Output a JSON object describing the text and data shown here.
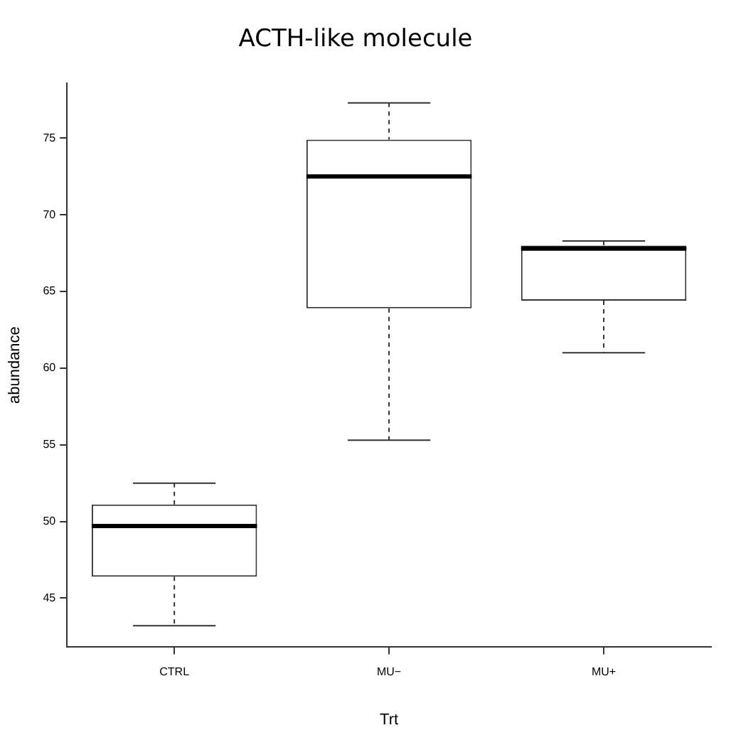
{
  "chart_data": {
    "type": "box",
    "title": "ACTH-like molecule",
    "xlabel": "Trt",
    "ylabel": "abundance",
    "categories": [
      "CTRL",
      "MU−",
      "MU+"
    ],
    "boxes": [
      {
        "low": 43.2,
        "q1": 46.4,
        "median": 49.7,
        "q3": 51.1,
        "high": 52.5
      },
      {
        "low": 55.3,
        "q1": 63.9,
        "median": 72.5,
        "q3": 74.9,
        "high": 77.3
      },
      {
        "low": 61.0,
        "q1": 64.4,
        "median": 67.8,
        "q3": 68.0,
        "high": 68.3
      }
    ],
    "color": "#333333",
    "ylim": [
      41.8,
      78.6
    ],
    "yticks": [
      45,
      50,
      55,
      60,
      65,
      70,
      75
    ],
    "grid": false
  }
}
